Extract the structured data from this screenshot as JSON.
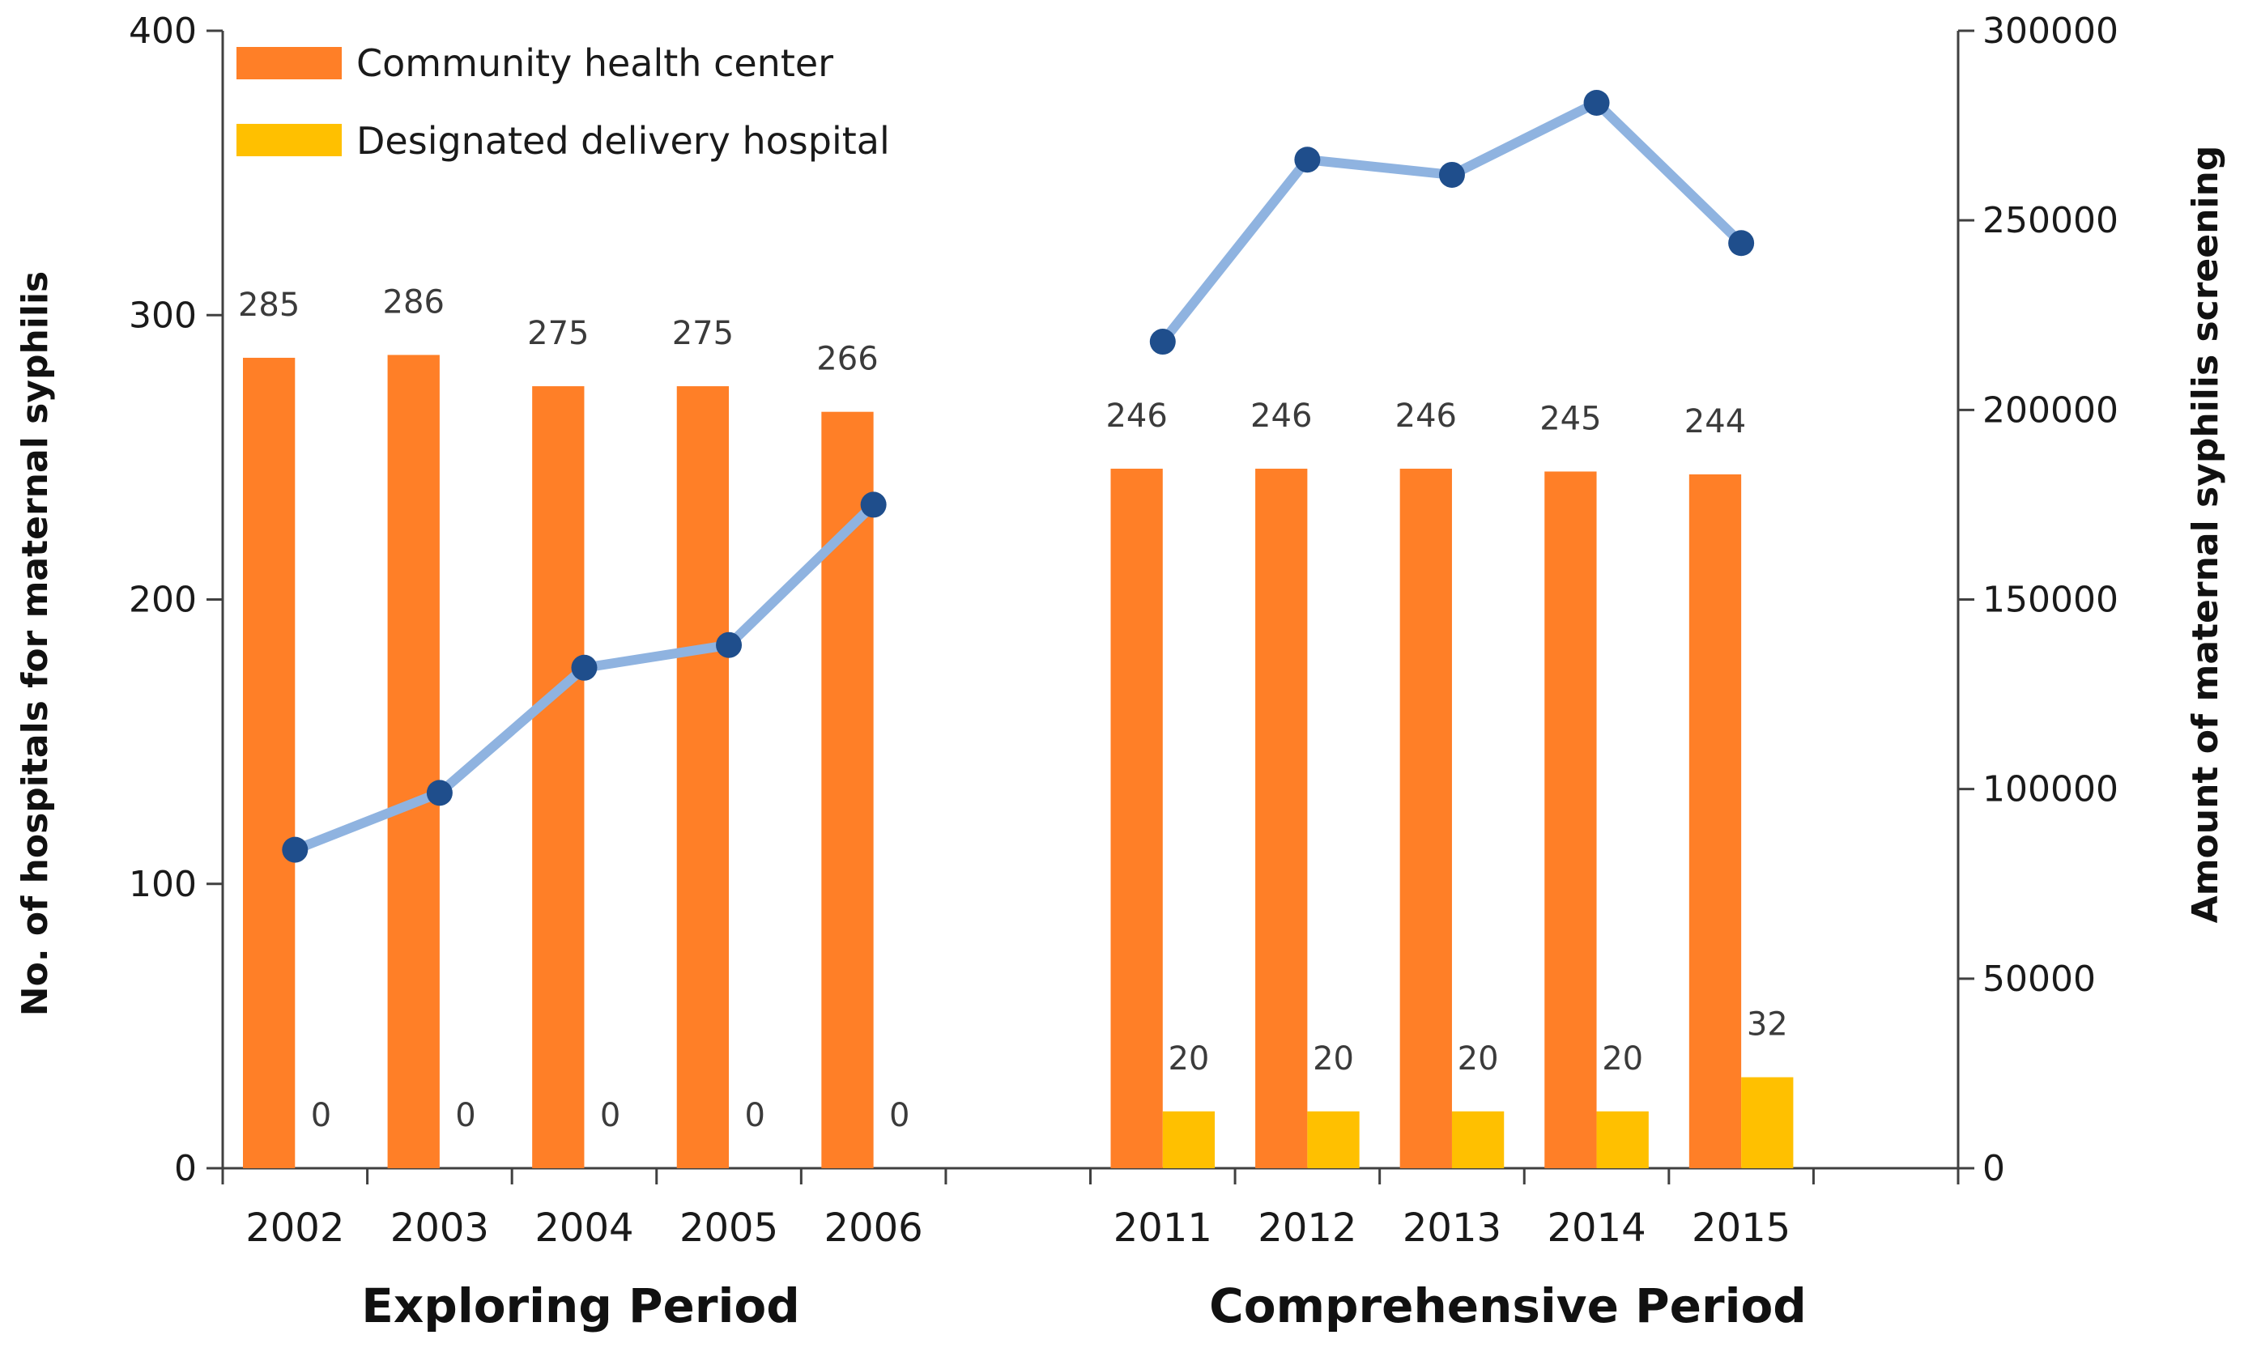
{
  "chart_data": {
    "type": "bar",
    "categories": [
      "2002",
      "2003",
      "2004",
      "2005",
      "2006",
      "2011",
      "2012",
      "2013",
      "2014",
      "2015"
    ],
    "periods": [
      {
        "label": "Exploring Period",
        "categories": [
          "2002",
          "2003",
          "2004",
          "2005",
          "2006"
        ]
      },
      {
        "label": "Comprehensive Period",
        "categories": [
          "2011",
          "2012",
          "2013",
          "2014",
          "2015"
        ]
      }
    ],
    "series": [
      {
        "name": "Community health center",
        "type": "bar",
        "axis": "left",
        "color": "#FF7F27",
        "values": [
          285,
          286,
          275,
          275,
          266,
          246,
          246,
          246,
          245,
          244
        ],
        "labels": [
          "285",
          "286",
          "275",
          "275",
          "266",
          "246",
          "246",
          "246",
          "245",
          "244"
        ]
      },
      {
        "name": "Designated delivery hospital",
        "type": "bar",
        "axis": "left",
        "color": "#FFC000",
        "values": [
          0,
          0,
          0,
          0,
          0,
          20,
          20,
          20,
          20,
          32
        ],
        "labels": [
          "0",
          "0",
          "0",
          "0",
          "0",
          "20",
          "20",
          "20",
          "20",
          "32"
        ]
      },
      {
        "name": "Amount of maternal syphilis screening",
        "type": "line",
        "axis": "right",
        "color": "#8FB3E0",
        "marker_color": "#1F4E8C",
        "values": [
          84000,
          99000,
          132000,
          138000,
          175000,
          218000,
          266000,
          262000,
          281000,
          244000
        ]
      }
    ],
    "ylabel": "No. of  hospitals for maternal syphilis",
    "y2label": "Amount of maternal syphilis screening",
    "ylim": [
      0,
      400
    ],
    "yticks": [
      "0",
      "100",
      "200",
      "300",
      "400"
    ],
    "y2lim": [
      0,
      300000
    ],
    "y2ticks": [
      "0",
      "50000",
      "100000",
      "150000",
      "200000",
      "250000",
      "300000"
    ],
    "legend_position": "top-left",
    "grid": false
  }
}
